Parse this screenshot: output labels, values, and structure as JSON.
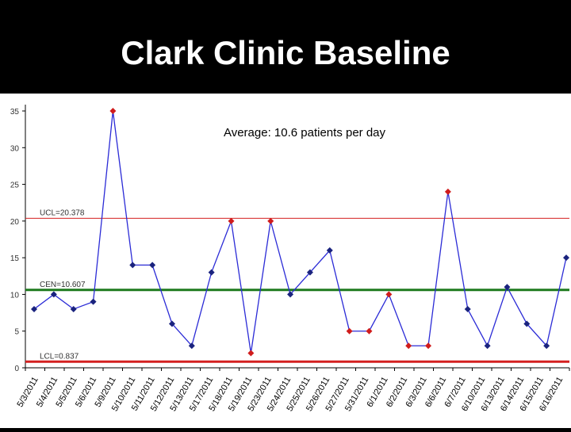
{
  "slide": {
    "title": "Clark Clinic Baseline"
  },
  "chart_data": {
    "type": "line",
    "annotation": "Average: 10.6 patients per day",
    "ylim": [
      0,
      35
    ],
    "y_ticks": [
      0,
      5,
      10,
      15,
      20,
      25,
      30,
      35
    ],
    "categories": [
      "5/3/2011",
      "5/4/2011",
      "5/5/2011",
      "5/6/2011",
      "5/9/2011",
      "5/10/2011",
      "5/11/2011",
      "5/12/2011",
      "5/13/2011",
      "5/17/2011",
      "5/18/2011",
      "5/19/2011",
      "5/23/2011",
      "5/24/2011",
      "5/25/2011",
      "5/26/2011",
      "5/27/2011",
      "5/31/2011",
      "6/1/2011",
      "6/2/2011",
      "6/3/2011",
      "6/6/2011",
      "6/7/2011",
      "6/10/2011",
      "6/13/2011",
      "6/14/2011",
      "6/15/2011",
      "6/16/2011"
    ],
    "values": [
      8,
      10,
      8,
      9,
      35,
      14,
      14,
      6,
      3,
      13,
      20,
      2,
      20,
      10,
      13,
      16,
      5,
      5,
      10,
      3,
      3,
      24,
      8,
      3,
      11,
      6,
      3,
      15
    ],
    "out_of_control_indices": [
      4,
      10,
      11,
      12,
      16,
      17,
      18,
      19,
      20,
      21
    ],
    "control_lines": [
      {
        "name": "UCL",
        "label": "UCL=20.378",
        "value": 20.378,
        "color": "#d42020"
      },
      {
        "name": "CEN",
        "label": "CEN=10.607",
        "value": 10.607,
        "color": "#1e7a1e"
      },
      {
        "name": "LCL",
        "label": "LCL=0.837",
        "value": 0.837,
        "color": "#d42020"
      }
    ],
    "colors": {
      "line": "#2b2bd6",
      "point": "#1a237e",
      "point_flagged": "#d01c1c",
      "axis": "#000000",
      "tick_text": "#333333"
    },
    "grid": false,
    "legend": "none"
  }
}
